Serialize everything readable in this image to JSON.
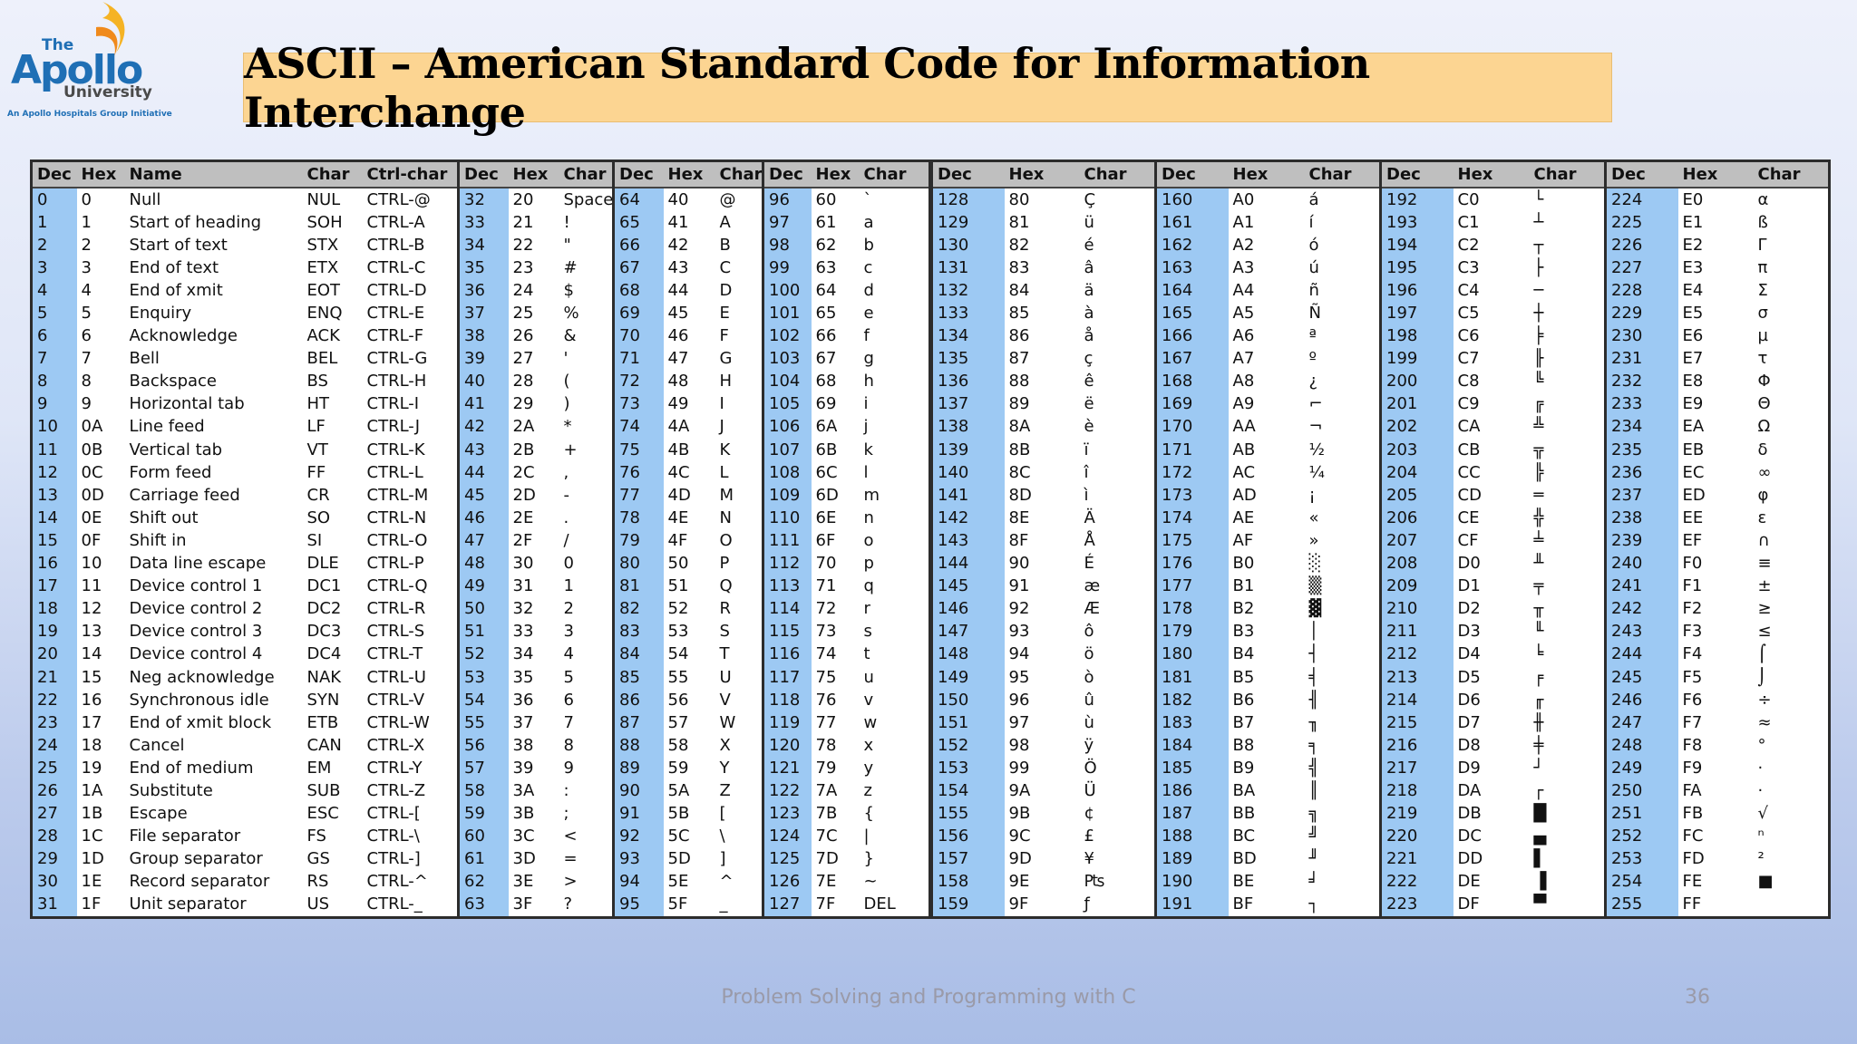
{
  "slide": {
    "title": "ASCII – American Standard Code for Information Interchange",
    "footer_course": "Problem Solving and Programming with C",
    "page_number": "36"
  },
  "logo": {
    "the": "The",
    "apollo": "Apollo",
    "university": "University",
    "tagline": "An Apollo Hospitals Group Initiative"
  },
  "colors": {
    "title_box": "#fcd592",
    "column_highlight": "#9dc9f3",
    "header_gray": "#bfbfbf"
  },
  "table_left": {
    "headers": [
      "Dec",
      "Hex",
      "Name",
      "Char",
      "Ctrl-char",
      "Dec",
      "Hex",
      "Char",
      "Dec",
      "Hex",
      "Char",
      "Dec",
      "Hex",
      "Char"
    ],
    "rows": [
      [
        "0",
        "0",
        "Null",
        "NUL",
        "CTRL-@",
        "32",
        "20",
        "Space",
        "64",
        "40",
        "@",
        "96",
        "60",
        "`"
      ],
      [
        "1",
        "1",
        "Start of heading",
        "SOH",
        "CTRL-A",
        "33",
        "21",
        "!",
        "65",
        "41",
        "A",
        "97",
        "61",
        "a"
      ],
      [
        "2",
        "2",
        "Start of text",
        "STX",
        "CTRL-B",
        "34",
        "22",
        "\"",
        "66",
        "42",
        "B",
        "98",
        "62",
        "b"
      ],
      [
        "3",
        "3",
        "End of text",
        "ETX",
        "CTRL-C",
        "35",
        "23",
        "#",
        "67",
        "43",
        "C",
        "99",
        "63",
        "c"
      ],
      [
        "4",
        "4",
        "End of xmit",
        "EOT",
        "CTRL-D",
        "36",
        "24",
        "$",
        "68",
        "44",
        "D",
        "100",
        "64",
        "d"
      ],
      [
        "5",
        "5",
        "Enquiry",
        "ENQ",
        "CTRL-E",
        "37",
        "25",
        "%",
        "69",
        "45",
        "E",
        "101",
        "65",
        "e"
      ],
      [
        "6",
        "6",
        "Acknowledge",
        "ACK",
        "CTRL-F",
        "38",
        "26",
        "&",
        "70",
        "46",
        "F",
        "102",
        "66",
        "f"
      ],
      [
        "7",
        "7",
        "Bell",
        "BEL",
        "CTRL-G",
        "39",
        "27",
        "'",
        "71",
        "47",
        "G",
        "103",
        "67",
        "g"
      ],
      [
        "8",
        "8",
        "Backspace",
        "BS",
        "CTRL-H",
        "40",
        "28",
        "(",
        "72",
        "48",
        "H",
        "104",
        "68",
        "h"
      ],
      [
        "9",
        "9",
        "Horizontal tab",
        "HT",
        "CTRL-I",
        "41",
        "29",
        ")",
        "73",
        "49",
        "I",
        "105",
        "69",
        "i"
      ],
      [
        "10",
        "0A",
        "Line feed",
        "LF",
        "CTRL-J",
        "42",
        "2A",
        "*",
        "74",
        "4A",
        "J",
        "106",
        "6A",
        "j"
      ],
      [
        "11",
        "0B",
        "Vertical tab",
        "VT",
        "CTRL-K",
        "43",
        "2B",
        "+",
        "75",
        "4B",
        "K",
        "107",
        "6B",
        "k"
      ],
      [
        "12",
        "0C",
        "Form feed",
        "FF",
        "CTRL-L",
        "44",
        "2C",
        ",",
        "76",
        "4C",
        "L",
        "108",
        "6C",
        "l"
      ],
      [
        "13",
        "0D",
        "Carriage feed",
        "CR",
        "CTRL-M",
        "45",
        "2D",
        "-",
        "77",
        "4D",
        "M",
        "109",
        "6D",
        "m"
      ],
      [
        "14",
        "0E",
        "Shift out",
        "SO",
        "CTRL-N",
        "46",
        "2E",
        ".",
        "78",
        "4E",
        "N",
        "110",
        "6E",
        "n"
      ],
      [
        "15",
        "0F",
        "Shift in",
        "SI",
        "CTRL-O",
        "47",
        "2F",
        "/",
        "79",
        "4F",
        "O",
        "111",
        "6F",
        "o"
      ],
      [
        "16",
        "10",
        "Data line escape",
        "DLE",
        "CTRL-P",
        "48",
        "30",
        "0",
        "80",
        "50",
        "P",
        "112",
        "70",
        "p"
      ],
      [
        "17",
        "11",
        "Device control 1",
        "DC1",
        "CTRL-Q",
        "49",
        "31",
        "1",
        "81",
        "51",
        "Q",
        "113",
        "71",
        "q"
      ],
      [
        "18",
        "12",
        "Device control 2",
        "DC2",
        "CTRL-R",
        "50",
        "32",
        "2",
        "82",
        "52",
        "R",
        "114",
        "72",
        "r"
      ],
      [
        "19",
        "13",
        "Device control 3",
        "DC3",
        "CTRL-S",
        "51",
        "33",
        "3",
        "83",
        "53",
        "S",
        "115",
        "73",
        "s"
      ],
      [
        "20",
        "14",
        "Device control 4",
        "DC4",
        "CTRL-T",
        "52",
        "34",
        "4",
        "84",
        "54",
        "T",
        "116",
        "74",
        "t"
      ],
      [
        "21",
        "15",
        "Neg acknowledge",
        "NAK",
        "CTRL-U",
        "53",
        "35",
        "5",
        "85",
        "55",
        "U",
        "117",
        "75",
        "u"
      ],
      [
        "22",
        "16",
        "Synchronous idle",
        "SYN",
        "CTRL-V",
        "54",
        "36",
        "6",
        "86",
        "56",
        "V",
        "118",
        "76",
        "v"
      ],
      [
        "23",
        "17",
        "End of xmit block",
        "ETB",
        "CTRL-W",
        "55",
        "37",
        "7",
        "87",
        "57",
        "W",
        "119",
        "77",
        "w"
      ],
      [
        "24",
        "18",
        "Cancel",
        "CAN",
        "CTRL-X",
        "56",
        "38",
        "8",
        "88",
        "58",
        "X",
        "120",
        "78",
        "x"
      ],
      [
        "25",
        "19",
        "End of medium",
        "EM",
        "CTRL-Y",
        "57",
        "39",
        "9",
        "89",
        "59",
        "Y",
        "121",
        "79",
        "y"
      ],
      [
        "26",
        "1A",
        "Substitute",
        "SUB",
        "CTRL-Z",
        "58",
        "3A",
        ":",
        "90",
        "5A",
        "Z",
        "122",
        "7A",
        "z"
      ],
      [
        "27",
        "1B",
        "Escape",
        "ESC",
        "CTRL-[",
        "59",
        "3B",
        ";",
        "91",
        "5B",
        "[",
        "123",
        "7B",
        "{"
      ],
      [
        "28",
        "1C",
        "File separator",
        "FS",
        "CTRL-\\",
        "60",
        "3C",
        "<",
        "92",
        "5C",
        "\\",
        "124",
        "7C",
        "|"
      ],
      [
        "29",
        "1D",
        "Group separator",
        "GS",
        "CTRL-]",
        "61",
        "3D",
        "=",
        "93",
        "5D",
        "]",
        "125",
        "7D",
        "}"
      ],
      [
        "30",
        "1E",
        "Record separator",
        "RS",
        "CTRL-^",
        "62",
        "3E",
        ">",
        "94",
        "5E",
        "^",
        "126",
        "7E",
        "~"
      ],
      [
        "31",
        "1F",
        "Unit separator",
        "US",
        "CTRL-_",
        "63",
        "3F",
        "?",
        "95",
        "5F",
        "_",
        "127",
        "7F",
        "DEL"
      ]
    ]
  },
  "table_right": {
    "headers": [
      "Dec",
      "Hex",
      "Char",
      "Dec",
      "Hex",
      "Char",
      "Dec",
      "Hex",
      "Char",
      "Dec",
      "Hex",
      "Char"
    ],
    "rows": [
      [
        "128",
        "80",
        "Ç",
        "160",
        "A0",
        "á",
        "192",
        "C0",
        "└",
        "224",
        "E0",
        "α"
      ],
      [
        "129",
        "81",
        "ü",
        "161",
        "A1",
        "í",
        "193",
        "C1",
        "┴",
        "225",
        "E1",
        "ß"
      ],
      [
        "130",
        "82",
        "é",
        "162",
        "A2",
        "ó",
        "194",
        "C2",
        "┬",
        "226",
        "E2",
        "Γ"
      ],
      [
        "131",
        "83",
        "â",
        "163",
        "A3",
        "ú",
        "195",
        "C3",
        "├",
        "227",
        "E3",
        "π"
      ],
      [
        "132",
        "84",
        "ä",
        "164",
        "A4",
        "ñ",
        "196",
        "C4",
        "─",
        "228",
        "E4",
        "Σ"
      ],
      [
        "133",
        "85",
        "à",
        "165",
        "A5",
        "Ñ",
        "197",
        "C5",
        "┼",
        "229",
        "E5",
        "σ"
      ],
      [
        "134",
        "86",
        "å",
        "166",
        "A6",
        "ª",
        "198",
        "C6",
        "╞",
        "230",
        "E6",
        "µ"
      ],
      [
        "135",
        "87",
        "ç",
        "167",
        "A7",
        "º",
        "199",
        "C7",
        "╟",
        "231",
        "E7",
        "τ"
      ],
      [
        "136",
        "88",
        "ê",
        "168",
        "A8",
        "¿",
        "200",
        "C8",
        "╚",
        "232",
        "E8",
        "Φ"
      ],
      [
        "137",
        "89",
        "ë",
        "169",
        "A9",
        "⌐",
        "201",
        "C9",
        "╔",
        "233",
        "E9",
        "Θ"
      ],
      [
        "138",
        "8A",
        "è",
        "170",
        "AA",
        "¬",
        "202",
        "CA",
        "╩",
        "234",
        "EA",
        "Ω"
      ],
      [
        "139",
        "8B",
        "ï",
        "171",
        "AB",
        "½",
        "203",
        "CB",
        "╦",
        "235",
        "EB",
        "δ"
      ],
      [
        "140",
        "8C",
        "î",
        "172",
        "AC",
        "¼",
        "204",
        "CC",
        "╠",
        "236",
        "EC",
        "∞"
      ],
      [
        "141",
        "8D",
        "ì",
        "173",
        "AD",
        "¡",
        "205",
        "CD",
        "═",
        "237",
        "ED",
        "φ"
      ],
      [
        "142",
        "8E",
        "Ä",
        "174",
        "AE",
        "«",
        "206",
        "CE",
        "╬",
        "238",
        "EE",
        "ε"
      ],
      [
        "143",
        "8F",
        "Å",
        "175",
        "AF",
        "»",
        "207",
        "CF",
        "╧",
        "239",
        "EF",
        "∩"
      ],
      [
        "144",
        "90",
        "É",
        "176",
        "B0",
        "░",
        "208",
        "D0",
        "╨",
        "240",
        "F0",
        "≡"
      ],
      [
        "145",
        "91",
        "æ",
        "177",
        "B1",
        "▒",
        "209",
        "D1",
        "╤",
        "241",
        "F1",
        "±"
      ],
      [
        "146",
        "92",
        "Æ",
        "178",
        "B2",
        "▓",
        "210",
        "D2",
        "╥",
        "242",
        "F2",
        "≥"
      ],
      [
        "147",
        "93",
        "ô",
        "179",
        "B3",
        "│",
        "211",
        "D3",
        "╙",
        "243",
        "F3",
        "≤"
      ],
      [
        "148",
        "94",
        "ö",
        "180",
        "B4",
        "┤",
        "212",
        "D4",
        "╘",
        "244",
        "F4",
        "⌠"
      ],
      [
        "149",
        "95",
        "ò",
        "181",
        "B5",
        "╡",
        "213",
        "D5",
        "╒",
        "245",
        "F5",
        "⌡"
      ],
      [
        "150",
        "96",
        "û",
        "182",
        "B6",
        "╢",
        "214",
        "D6",
        "╓",
        "246",
        "F6",
        "÷"
      ],
      [
        "151",
        "97",
        "ù",
        "183",
        "B7",
        "╖",
        "215",
        "D7",
        "╫",
        "247",
        "F7",
        "≈"
      ],
      [
        "152",
        "98",
        "ÿ",
        "184",
        "B8",
        "╕",
        "216",
        "D8",
        "╪",
        "248",
        "F8",
        "°"
      ],
      [
        "153",
        "99",
        "Ö",
        "185",
        "B9",
        "╣",
        "217",
        "D9",
        "┘",
        "249",
        "F9",
        "·"
      ],
      [
        "154",
        "9A",
        "Ü",
        "186",
        "BA",
        "║",
        "218",
        "DA",
        "┌",
        "250",
        "FA",
        "·"
      ],
      [
        "155",
        "9B",
        "¢",
        "187",
        "BB",
        "╗",
        "219",
        "DB",
        "█",
        "251",
        "FB",
        "√"
      ],
      [
        "156",
        "9C",
        "£",
        "188",
        "BC",
        "╝",
        "220",
        "DC",
        "▄",
        "252",
        "FC",
        "ⁿ"
      ],
      [
        "157",
        "9D",
        "¥",
        "189",
        "BD",
        "╜",
        "221",
        "DD",
        "▌",
        "253",
        "FD",
        "²"
      ],
      [
        "158",
        "9E",
        "₧",
        "190",
        "BE",
        "╛",
        "222",
        "DE",
        "▐",
        "254",
        "FE",
        "■"
      ],
      [
        "159",
        "9F",
        "ƒ",
        "191",
        "BF",
        "┐",
        "223",
        "DF",
        "▀",
        "255",
        "FF",
        " "
      ]
    ]
  }
}
